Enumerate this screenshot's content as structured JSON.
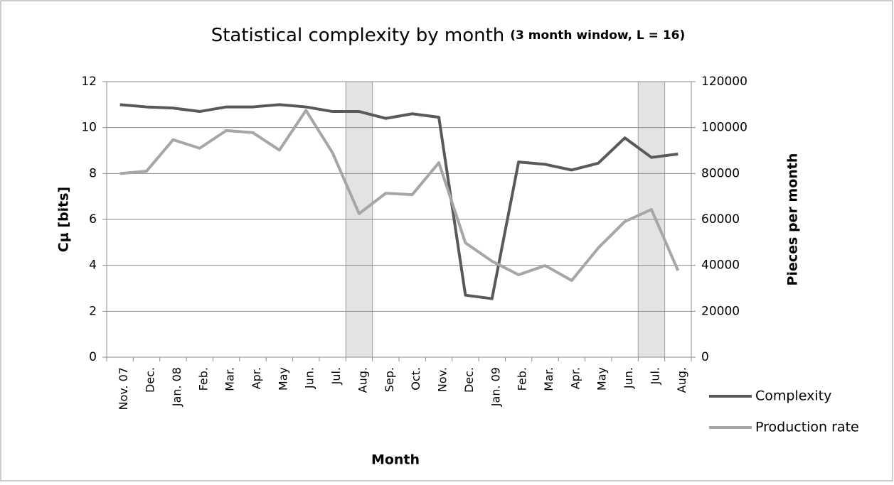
{
  "chart_data": {
    "type": "line",
    "title": "Statistical complexity by month",
    "subtitle": "(3 month window, L = 16)",
    "x_label": "Month",
    "y_label": "Cμ [bits]",
    "y2_label": "Pieces per month",
    "categories": [
      "Nov. 07",
      "Dec.",
      "Jan. 08",
      "Feb.",
      "Mar.",
      "Apr.",
      "May",
      "Jun.",
      "Jul.",
      "Aug.",
      "Sep.",
      "Oct.",
      "Nov.",
      "Dec.",
      "Jan. 09",
      "Feb.",
      "Mar.",
      "Apr.",
      "May",
      "Jun.",
      "Jul.",
      "Aug."
    ],
    "shaded_categories": [
      9,
      20
    ],
    "series": [
      {
        "name": "Complexity",
        "color": "#595959",
        "values": [
          11.0,
          10.9,
          10.85,
          10.7,
          10.9,
          10.9,
          11.0,
          10.9,
          10.7,
          10.7,
          10.4,
          10.6,
          10.45,
          2.7,
          2.55,
          8.5,
          8.4,
          8.15,
          8.45,
          9.55,
          8.7,
          8.85
        ]
      },
      {
        "name": "Production rate",
        "color": "#a6a6a6",
        "axis": "y2",
        "values": [
          80000,
          81000,
          94700,
          91000,
          98700,
          97800,
          90200,
          107500,
          89000,
          62500,
          71400,
          70800,
          84700,
          49800,
          41800,
          35900,
          39900,
          33400,
          47600,
          59100,
          64300,
          37700
        ]
      }
    ],
    "ylim": [
      0,
      12
    ],
    "yticks": [
      0,
      2,
      4,
      6,
      8,
      10,
      12
    ],
    "y2lim": [
      0,
      120000
    ],
    "y2ticks": [
      0,
      20000,
      40000,
      60000,
      80000,
      100000,
      120000
    ],
    "grid": true,
    "legend": "bottom-right"
  }
}
